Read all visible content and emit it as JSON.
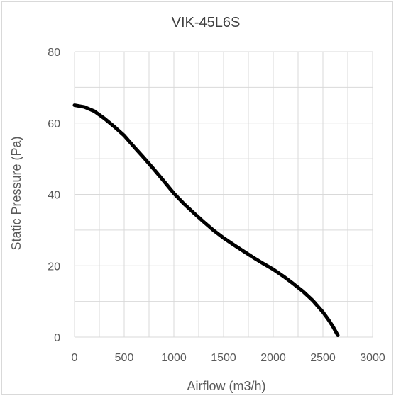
{
  "chart_data": {
    "type": "line",
    "title": "VIK-45L6S",
    "xlabel": "Airflow (m3/h)",
    "ylabel": "Static  Pressure (Pa)",
    "xlim": [
      0,
      3000
    ],
    "ylim": [
      0,
      80
    ],
    "x_ticks": [
      0,
      500,
      1000,
      1500,
      2000,
      2500,
      3000
    ],
    "y_ticks": [
      0,
      20,
      40,
      60,
      80
    ],
    "x_minor_step": 250,
    "y_minor_step": 10,
    "grid": true,
    "legend": "none",
    "series": [
      {
        "color": "#000000",
        "x": [
          0,
          100,
          200,
          300,
          400,
          500,
          600,
          700,
          800,
          900,
          1000,
          1100,
          1200,
          1300,
          1400,
          1500,
          1600,
          1700,
          1800,
          1900,
          2000,
          2100,
          2200,
          2300,
          2400,
          2500,
          2550,
          2600,
          2650
        ],
        "y": [
          65,
          64.5,
          63.3,
          61.3,
          59,
          56.5,
          53.3,
          50.2,
          47,
          43.7,
          40.3,
          37.4,
          34.8,
          32.3,
          29.9,
          27.8,
          25.9,
          24.1,
          22.3,
          20.6,
          19,
          17.1,
          15,
          12.8,
          10.2,
          7,
          5.1,
          3,
          0.5
        ]
      }
    ]
  }
}
